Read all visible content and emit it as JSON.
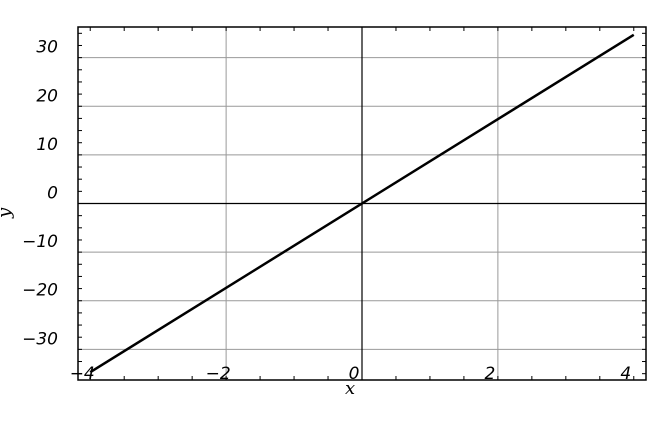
{
  "chart_data": {
    "type": "line",
    "title": "",
    "xlabel": "x",
    "ylabel": "y",
    "xlim": [
      -4.18,
      4.18
    ],
    "ylim": [
      -36.3,
      36.3
    ],
    "xticks": [
      -4,
      -2,
      0,
      2,
      4
    ],
    "xtick_labels": [
      "−4",
      "−2",
      "0",
      "2",
      "4"
    ],
    "yticks": [
      -30,
      -20,
      -10,
      0,
      10,
      20,
      30
    ],
    "ytick_labels": [
      "−30",
      "−20",
      "−10",
      "0",
      "10",
      "20",
      "30"
    ],
    "grid": true,
    "series": [
      {
        "x": [
          -4,
          4
        ],
        "y": [
          -34.7,
          34.7
        ],
        "color": "#000000"
      }
    ]
  }
}
